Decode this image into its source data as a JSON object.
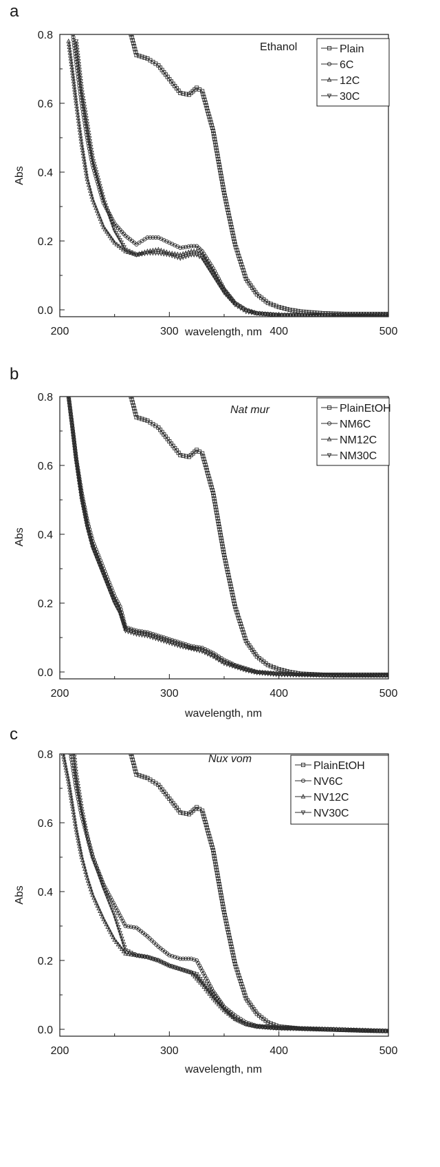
{
  "chart_data": [
    {
      "panel": "a",
      "type": "line",
      "annotation": "Ethanol",
      "xlabel": "wavelength, nm",
      "ylabel": "Abs",
      "xlim": [
        200,
        500
      ],
      "ylim": [
        -0.02,
        0.8
      ],
      "x_ticks": [
        "200",
        "300",
        "400",
        "500"
      ],
      "y_ticks": [
        "0.0",
        "0.2",
        "0.4",
        "0.6",
        "0.8"
      ],
      "legend_position": "top-right",
      "series": [
        {
          "name": "Plain",
          "marker": "square",
          "x": [
            265,
            270,
            280,
            290,
            300,
            310,
            318,
            325,
            330,
            340,
            350,
            360,
            370,
            380,
            390,
            400,
            410,
            420,
            440,
            460,
            480,
            500
          ],
          "y": [
            0.8,
            0.74,
            0.73,
            0.71,
            0.67,
            0.63,
            0.625,
            0.645,
            0.635,
            0.52,
            0.34,
            0.19,
            0.09,
            0.045,
            0.02,
            0.008,
            0.0,
            -0.005,
            -0.01,
            -0.012,
            -0.012,
            -0.012
          ]
        },
        {
          "name": "6C",
          "marker": "circle",
          "x": [
            212,
            215,
            220,
            225,
            230,
            240,
            250,
            260,
            270,
            280,
            290,
            300,
            310,
            320,
            325,
            330,
            340,
            350,
            360,
            370,
            380,
            400,
            450,
            500
          ],
          "y": [
            0.8,
            0.72,
            0.6,
            0.5,
            0.42,
            0.31,
            0.25,
            0.215,
            0.19,
            0.21,
            0.21,
            0.195,
            0.18,
            0.185,
            0.185,
            0.17,
            0.12,
            0.06,
            0.02,
            0.0,
            -0.01,
            -0.015,
            -0.015,
            -0.015
          ]
        },
        {
          "name": "12C",
          "marker": "triangle",
          "x": [
            208,
            212,
            215,
            220,
            225,
            230,
            240,
            250,
            260,
            270,
            280,
            290,
            300,
            310,
            320,
            325,
            330,
            340,
            350,
            360,
            370,
            380,
            400,
            450,
            500
          ],
          "y": [
            0.78,
            0.68,
            0.6,
            0.48,
            0.38,
            0.32,
            0.24,
            0.195,
            0.17,
            0.16,
            0.17,
            0.175,
            0.165,
            0.16,
            0.17,
            0.17,
            0.16,
            0.11,
            0.06,
            0.02,
            0.0,
            -0.01,
            -0.015,
            -0.015,
            -0.015
          ]
        },
        {
          "name": "30C",
          "marker": "triangle-down",
          "x": [
            215,
            220,
            225,
            230,
            240,
            250,
            260,
            270,
            280,
            290,
            300,
            310,
            320,
            325,
            330,
            340,
            350,
            360,
            370,
            380,
            400,
            450,
            500
          ],
          "y": [
            0.78,
            0.64,
            0.54,
            0.44,
            0.32,
            0.23,
            0.175,
            0.16,
            0.165,
            0.165,
            0.16,
            0.15,
            0.16,
            0.16,
            0.15,
            0.1,
            0.05,
            0.015,
            -0.005,
            -0.01,
            -0.015,
            -0.015,
            -0.015
          ]
        }
      ]
    },
    {
      "panel": "b",
      "type": "line",
      "annotation": "Nat mur",
      "xlabel": "wavelength, nm",
      "ylabel": "Abs",
      "xlim": [
        200,
        500
      ],
      "ylim": [
        -0.02,
        0.8
      ],
      "x_ticks": [
        "200",
        "300",
        "400",
        "500"
      ],
      "y_ticks": [
        "0.0",
        "0.2",
        "0.4",
        "0.6",
        "0.8"
      ],
      "legend_position": "top-right",
      "series": [
        {
          "name": "PlainEtOH",
          "marker": "square",
          "x": [
            265,
            270,
            280,
            290,
            300,
            310,
            318,
            325,
            330,
            340,
            350,
            360,
            370,
            380,
            390,
            400,
            410,
            420,
            440,
            460,
            480,
            500
          ],
          "y": [
            0.8,
            0.74,
            0.73,
            0.71,
            0.67,
            0.63,
            0.625,
            0.645,
            0.635,
            0.52,
            0.34,
            0.19,
            0.09,
            0.045,
            0.02,
            0.008,
            0.0,
            -0.005,
            -0.008,
            -0.008,
            -0.008,
            -0.008
          ]
        },
        {
          "name": "NM6C",
          "marker": "circle",
          "x": [
            208,
            212,
            215,
            220,
            225,
            230,
            240,
            250,
            255,
            260,
            270,
            280,
            290,
            300,
            310,
            320,
            330,
            340,
            350,
            360,
            370,
            380,
            400,
            450,
            500
          ],
          "y": [
            0.8,
            0.7,
            0.62,
            0.52,
            0.44,
            0.38,
            0.3,
            0.22,
            0.19,
            0.13,
            0.12,
            0.115,
            0.105,
            0.095,
            0.085,
            0.075,
            0.07,
            0.055,
            0.035,
            0.02,
            0.01,
            0.0,
            -0.005,
            -0.01,
            -0.01
          ]
        },
        {
          "name": "NM12C",
          "marker": "triangle",
          "x": [
            208,
            212,
            215,
            220,
            225,
            230,
            240,
            250,
            255,
            260,
            270,
            280,
            290,
            300,
            310,
            320,
            330,
            340,
            350,
            360,
            370,
            380,
            400,
            450,
            500
          ],
          "y": [
            0.8,
            0.7,
            0.62,
            0.51,
            0.43,
            0.37,
            0.29,
            0.21,
            0.18,
            0.125,
            0.115,
            0.11,
            0.1,
            0.09,
            0.08,
            0.07,
            0.065,
            0.05,
            0.03,
            0.018,
            0.008,
            0.0,
            -0.005,
            -0.01,
            -0.01
          ]
        },
        {
          "name": "NM30C",
          "marker": "triangle-down",
          "x": [
            208,
            212,
            215,
            220,
            225,
            230,
            240,
            250,
            255,
            260,
            270,
            280,
            290,
            300,
            310,
            320,
            330,
            340,
            350,
            360,
            370,
            380,
            400,
            450,
            500
          ],
          "y": [
            0.8,
            0.69,
            0.61,
            0.5,
            0.42,
            0.36,
            0.28,
            0.2,
            0.17,
            0.12,
            0.11,
            0.105,
            0.095,
            0.085,
            0.075,
            0.068,
            0.06,
            0.045,
            0.025,
            0.015,
            0.005,
            -0.002,
            -0.008,
            -0.01,
            -0.01
          ]
        }
      ]
    },
    {
      "panel": "c",
      "type": "line",
      "annotation": "Nux vom",
      "xlabel": "wavelength, nm",
      "ylabel": "Abs",
      "xlim": [
        200,
        500
      ],
      "ylim": [
        -0.02,
        0.8
      ],
      "x_ticks": [
        "200",
        "300",
        "400",
        "500"
      ],
      "y_ticks": [
        "0.0",
        "0.2",
        "0.4",
        "0.6",
        "0.8"
      ],
      "legend_position": "top-right",
      "series": [
        {
          "name": "PlainEtOH",
          "marker": "square",
          "x": [
            265,
            270,
            280,
            290,
            300,
            310,
            318,
            325,
            330,
            340,
            350,
            360,
            370,
            380,
            390,
            400,
            410,
            420,
            440,
            460,
            480,
            500
          ],
          "y": [
            0.8,
            0.74,
            0.73,
            0.71,
            0.67,
            0.63,
            0.625,
            0.645,
            0.635,
            0.52,
            0.34,
            0.19,
            0.09,
            0.045,
            0.02,
            0.008,
            0.005,
            0.002,
            0.0,
            -0.002,
            -0.004,
            -0.005
          ]
        },
        {
          "name": "NV6C",
          "marker": "circle",
          "x": [
            210,
            215,
            220,
            225,
            230,
            240,
            250,
            260,
            270,
            280,
            290,
            300,
            310,
            320,
            325,
            330,
            340,
            350,
            360,
            370,
            380,
            400,
            450,
            500
          ],
          "y": [
            0.8,
            0.7,
            0.62,
            0.56,
            0.5,
            0.42,
            0.36,
            0.3,
            0.295,
            0.27,
            0.24,
            0.215,
            0.205,
            0.205,
            0.2,
            0.17,
            0.11,
            0.065,
            0.04,
            0.02,
            0.01,
            0.005,
            0.0,
            -0.005
          ]
        },
        {
          "name": "NV12C",
          "marker": "triangle",
          "x": [
            203,
            208,
            212,
            215,
            220,
            225,
            230,
            240,
            250,
            260,
            270,
            280,
            290,
            300,
            310,
            320,
            330,
            340,
            350,
            360,
            370,
            380,
            400,
            450,
            500
          ],
          "y": [
            0.8,
            0.72,
            0.64,
            0.58,
            0.5,
            0.44,
            0.39,
            0.32,
            0.26,
            0.22,
            0.215,
            0.21,
            0.2,
            0.185,
            0.175,
            0.165,
            0.13,
            0.09,
            0.055,
            0.03,
            0.015,
            0.008,
            0.003,
            0.0,
            -0.005
          ]
        },
        {
          "name": "NV30C",
          "marker": "triangle-down",
          "x": [
            213,
            215,
            220,
            225,
            230,
            240,
            250,
            260,
            270,
            280,
            290,
            300,
            310,
            320,
            325,
            330,
            340,
            350,
            360,
            370,
            380,
            400,
            450,
            500
          ],
          "y": [
            0.8,
            0.74,
            0.64,
            0.56,
            0.5,
            0.41,
            0.33,
            0.23,
            0.215,
            0.21,
            0.2,
            0.185,
            0.175,
            0.165,
            0.16,
            0.14,
            0.1,
            0.06,
            0.03,
            0.015,
            0.008,
            0.003,
            0.0,
            -0.005
          ]
        }
      ]
    }
  ]
}
